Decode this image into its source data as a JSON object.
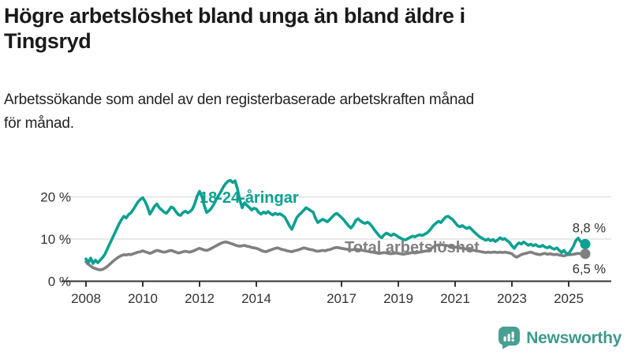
{
  "header": {
    "title": "Högre arbetslöshet bland unga än bland äldre i\nTingsryd",
    "subtitle": "Arbetssökande som andel av den registerbaserade arbetskraften månad\nför månad."
  },
  "footer": {
    "brand": "Newsworthy",
    "brand_color": "#3f9a8e",
    "icon_color": "#47a093"
  },
  "chart_data": {
    "type": "line",
    "title": "Högre arbetslöshet bland unga än bland äldre i Tingsryd",
    "subtitle": "Arbetssökande som andel av den registerbaserade arbetskraften månad för månad.",
    "unit": "%",
    "frequency": "monthly",
    "x_start_year": 2008,
    "x_end": "2025-08",
    "ylim": [
      0,
      24.5
    ],
    "grid": true,
    "grid_color": "#e0e0e0",
    "axis_color": "#333333",
    "label_color": "#333333",
    "x_ticks": [
      {
        "year": 2008,
        "label": "2008"
      },
      {
        "year": 2010,
        "label": "2010"
      },
      {
        "year": 2012,
        "label": "2012"
      },
      {
        "year": 2014,
        "label": "2014"
      },
      {
        "year": 2017,
        "label": "2017"
      },
      {
        "year": 2019,
        "label": "2019"
      },
      {
        "year": 2021,
        "label": "2021"
      },
      {
        "year": 2023,
        "label": "2023"
      },
      {
        "year": 2025,
        "label": "2025"
      }
    ],
    "y_ticks": [
      {
        "value": 0,
        "label": "0 %"
      },
      {
        "value": 10,
        "label": "10 %"
      },
      {
        "value": 20,
        "label": "20 %"
      }
    ],
    "series": [
      {
        "name": "18-24-åringar",
        "color": "#0ca091",
        "end_label": "8,8 %",
        "end_value": 8.8,
        "values": [
          5.3,
          4.4,
          5.5,
          4.2,
          5.0,
          4.4,
          5.0,
          5.6,
          6.4,
          7.6,
          8.8,
          10.0,
          11.2,
          12.4,
          13.6,
          14.6,
          15.4,
          15.0,
          15.8,
          16.2,
          17.0,
          17.9,
          18.8,
          19.4,
          19.8,
          18.9,
          17.6,
          15.9,
          16.8,
          17.8,
          18.3,
          17.4,
          16.9,
          16.4,
          16.1,
          16.8,
          17.6,
          17.3,
          16.5,
          15.8,
          15.6,
          16.3,
          16.6,
          16.2,
          16.5,
          17.1,
          18.4,
          20.2,
          21.3,
          20.1,
          17.9,
          16.3,
          16.7,
          17.3,
          18.2,
          19.3,
          20.3,
          21.2,
          22.3,
          23.1,
          23.7,
          23.9,
          23.4,
          23.8,
          21.9,
          19.3,
          17.4,
          18.6,
          18.0,
          17.5,
          16.9,
          17.3,
          17.1,
          16.3,
          15.9,
          16.4,
          16.1,
          16.5,
          16.0,
          15.7,
          16.1,
          15.8,
          16.0,
          15.6,
          15.2,
          14.2,
          13.1,
          12.3,
          13.6,
          15.0,
          15.7,
          16.2,
          16.8,
          17.4,
          17.1,
          16.7,
          16.4,
          14.9,
          13.9,
          14.3,
          14.7,
          14.4,
          14.1,
          14.6,
          15.2,
          15.8,
          16.1,
          15.6,
          15.1,
          14.5,
          13.8,
          13.1,
          12.6,
          13.3,
          14.4,
          14.8,
          14.3,
          13.9,
          13.7,
          14.0,
          13.6,
          12.9,
          12.1,
          11.4,
          10.7,
          10.3,
          11.0,
          11.4,
          11.1,
          10.8,
          11.2,
          10.9,
          10.5,
          10.2,
          9.9,
          9.8,
          10.1,
          10.4,
          10.7,
          10.5,
          10.8,
          11.0,
          10.8,
          11.1,
          11.4,
          11.9,
          12.6,
          13.3,
          13.8,
          14.2,
          13.9,
          14.6,
          15.2,
          15.4,
          15.0,
          14.6,
          13.9,
          13.2,
          12.9,
          13.2,
          12.8,
          12.5,
          12.8,
          12.3,
          11.7,
          11.2,
          10.7,
          10.3,
          10.0,
          9.7,
          10.0,
          9.6,
          9.9,
          9.4,
          9.8,
          10.3,
          9.9,
          10.1,
          9.6,
          9.2,
          8.4,
          7.8,
          8.6,
          9.1,
          8.8,
          9.3,
          8.9,
          8.5,
          8.8,
          8.4,
          8.7,
          8.3,
          8.2,
          8.5,
          8.1,
          7.9,
          8.2,
          7.8,
          7.6,
          7.9,
          7.3,
          6.8,
          7.3,
          6.6,
          6.5,
          7.4,
          8.3,
          9.6,
          10.2,
          9.4,
          8.9,
          8.8
        ]
      },
      {
        "name": "Total arbetslöshet",
        "color": "#808080",
        "end_label": "6,5 %",
        "end_value": 6.5,
        "values": [
          4.6,
          4.0,
          3.6,
          3.2,
          3.0,
          2.8,
          2.7,
          2.8,
          3.1,
          3.5,
          4.0,
          4.5,
          5.0,
          5.4,
          5.8,
          6.1,
          6.3,
          6.2,
          6.4,
          6.3,
          6.5,
          6.7,
          6.9,
          7.0,
          7.2,
          7.0,
          6.8,
          6.6,
          6.8,
          7.1,
          7.3,
          7.2,
          7.0,
          6.9,
          7.0,
          7.2,
          7.3,
          7.1,
          6.9,
          6.7,
          6.8,
          7.0,
          7.1,
          7.0,
          6.9,
          7.1,
          7.3,
          7.6,
          7.8,
          7.6,
          7.4,
          7.3,
          7.5,
          7.8,
          8.1,
          8.4,
          8.7,
          9.0,
          9.2,
          9.3,
          9.2,
          9.0,
          8.8,
          8.6,
          8.4,
          8.3,
          8.4,
          8.5,
          8.3,
          8.2,
          8.0,
          7.9,
          7.8,
          7.6,
          7.3,
          7.1,
          7.0,
          7.2,
          7.4,
          7.6,
          7.8,
          7.9,
          7.7,
          7.5,
          7.4,
          7.2,
          7.1,
          7.0,
          7.2,
          7.3,
          7.5,
          7.7,
          7.9,
          7.8,
          7.6,
          7.5,
          7.4,
          7.2,
          7.1,
          7.2,
          7.3,
          7.2,
          7.4,
          7.5,
          7.7,
          7.9,
          8.0,
          7.9,
          7.8,
          7.7,
          7.6,
          7.5,
          7.4,
          7.5,
          7.6,
          7.5,
          7.4,
          7.3,
          7.2,
          7.1,
          7.0,
          6.9,
          6.8,
          6.7,
          6.6,
          6.7,
          6.8,
          6.7,
          6.6,
          6.5,
          6.6,
          6.7,
          6.6,
          6.5,
          6.4,
          6.5,
          6.6,
          6.7,
          6.8,
          6.7,
          6.8,
          6.9,
          7.0,
          7.1,
          7.2,
          7.4,
          7.8,
          8.2,
          8.5,
          8.6,
          8.7,
          8.6,
          8.5,
          8.4,
          8.3,
          8.2,
          8.1,
          8.0,
          7.9,
          7.8,
          7.7,
          7.6,
          7.5,
          7.4,
          7.3,
          7.2,
          7.1,
          7.0,
          6.9,
          6.8,
          6.9,
          6.8,
          6.9,
          6.9,
          6.8,
          6.9,
          6.8,
          6.9,
          6.8,
          6.7,
          6.5,
          6.0,
          5.7,
          6.0,
          6.3,
          6.5,
          6.6,
          6.8,
          6.9,
          6.7,
          6.5,
          6.4,
          6.3,
          6.5,
          6.6,
          6.4,
          6.5,
          6.4,
          6.3,
          6.4,
          6.2,
          6.1,
          6.0,
          6.2,
          6.3,
          6.3,
          6.4,
          6.5,
          6.6,
          6.5,
          6.5,
          6.5
        ]
      }
    ]
  }
}
